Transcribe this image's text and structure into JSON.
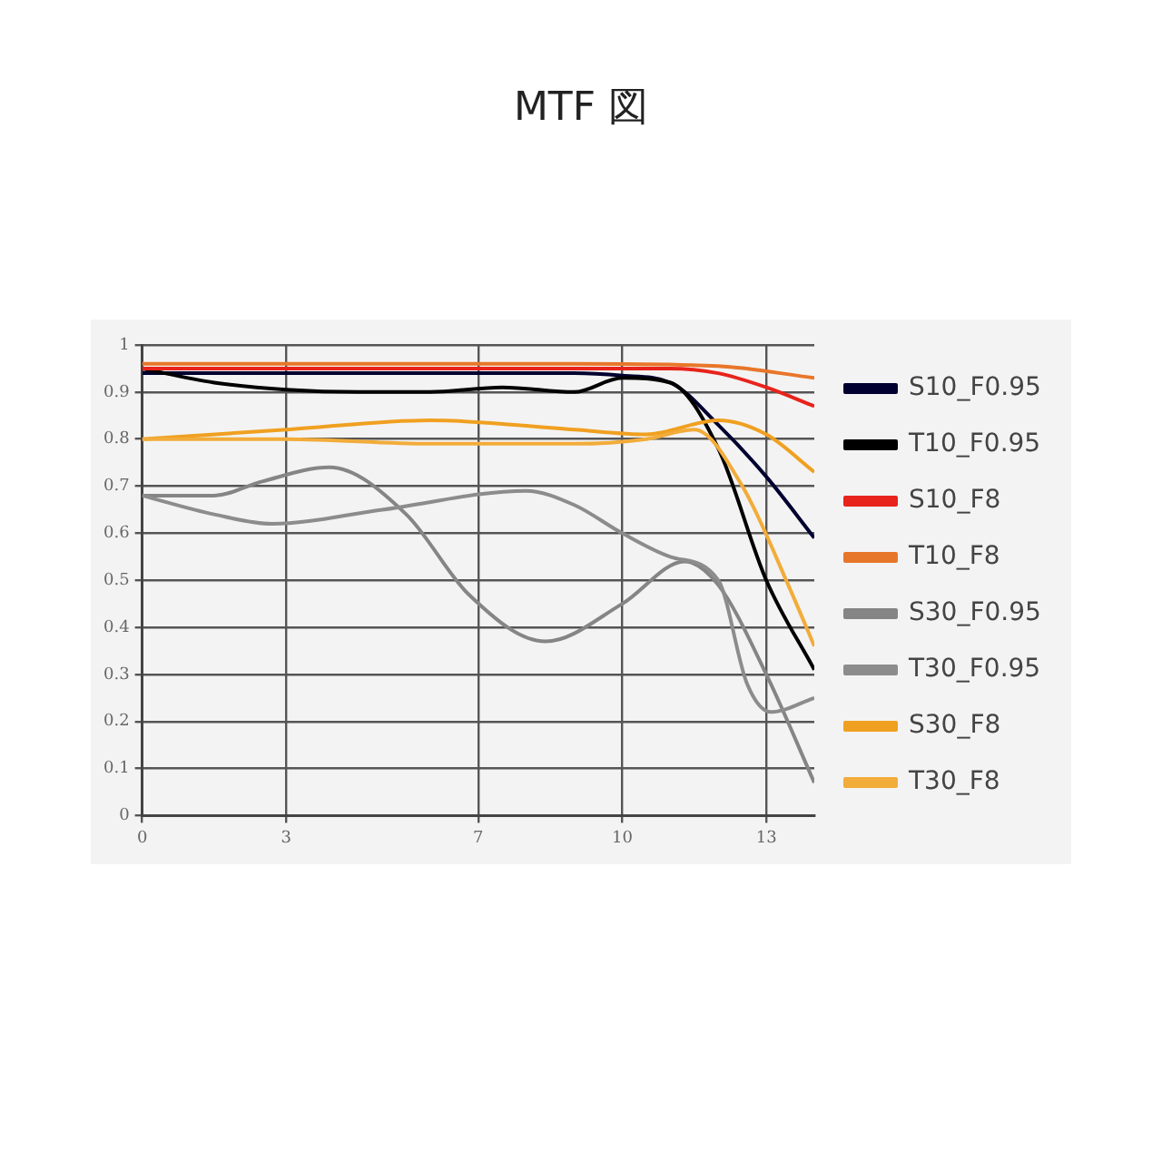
{
  "chart_data": {
    "type": "line",
    "title": "MTF 図",
    "xlim": [
      0,
      14
    ],
    "xticks": [
      0,
      3,
      7,
      10,
      13
    ],
    "ylim": [
      0,
      1
    ],
    "yticks": [
      0,
      0.1,
      0.2,
      0.3,
      0.4,
      0.5,
      0.6,
      0.7,
      0.8,
      0.9,
      1
    ],
    "grid": true,
    "legend": "right",
    "marker": "none",
    "line_style": "solid",
    "series": [
      {
        "name": "S10_F0.95",
        "color": "#000030",
        "x": [
          0,
          1.5,
          3,
          4.5,
          6,
          7.5,
          9,
          10,
          11,
          12,
          13,
          14
        ],
        "values": [
          0.94,
          0.94,
          0.94,
          0.94,
          0.94,
          0.94,
          0.94,
          0.935,
          0.92,
          0.83,
          0.72,
          0.59
        ]
      },
      {
        "name": "T10_F0.95",
        "color": "#000000",
        "x": [
          0,
          1.5,
          3,
          4.5,
          6,
          7.5,
          9,
          10,
          11,
          12,
          13,
          14
        ],
        "values": [
          0.95,
          0.92,
          0.905,
          0.9,
          0.9,
          0.91,
          0.9,
          0.93,
          0.92,
          0.78,
          0.5,
          0.31
        ]
      },
      {
        "name": "S10_F8",
        "color": "#e8231b",
        "x": [
          0,
          3,
          6,
          9,
          11,
          12,
          13,
          14
        ],
        "values": [
          0.95,
          0.95,
          0.95,
          0.95,
          0.95,
          0.94,
          0.91,
          0.87
        ]
      },
      {
        "name": "T10_F8",
        "color": "#e8762a",
        "x": [
          0,
          3,
          6,
          9,
          12,
          14
        ],
        "values": [
          0.96,
          0.96,
          0.96,
          0.96,
          0.955,
          0.93
        ]
      },
      {
        "name": "S30_F0.95",
        "color": "#858585",
        "x": [
          0,
          1.5,
          2.5,
          3.9,
          5.5,
          6.8,
          8.4,
          10,
          11.3,
          12,
          13,
          14
        ],
        "values": [
          0.68,
          0.68,
          0.71,
          0.74,
          0.64,
          0.47,
          0.37,
          0.45,
          0.54,
          0.49,
          0.3,
          0.07
        ]
      },
      {
        "name": "T30_F0.95",
        "color": "#8c8c8c",
        "x": [
          0,
          1.5,
          2.7,
          5,
          8,
          9,
          10,
          11,
          12,
          12.6,
          13.1,
          14
        ],
        "values": [
          0.68,
          0.64,
          0.62,
          0.65,
          0.69,
          0.66,
          0.6,
          0.55,
          0.5,
          0.28,
          0.22,
          0.25
        ]
      },
      {
        "name": "S30_F8",
        "color": "#f0a020",
        "x": [
          0,
          3,
          6,
          9,
          10.5,
          12,
          13,
          14
        ],
        "values": [
          0.8,
          0.82,
          0.84,
          0.82,
          0.81,
          0.84,
          0.81,
          0.73
        ]
      },
      {
        "name": "T30_F8",
        "color": "#f2ac3a",
        "x": [
          0,
          3,
          6,
          9,
          10.5,
          11.5,
          12.5,
          13.5,
          14
        ],
        "values": [
          0.8,
          0.8,
          0.79,
          0.79,
          0.8,
          0.82,
          0.7,
          0.48,
          0.36
        ]
      }
    ]
  }
}
